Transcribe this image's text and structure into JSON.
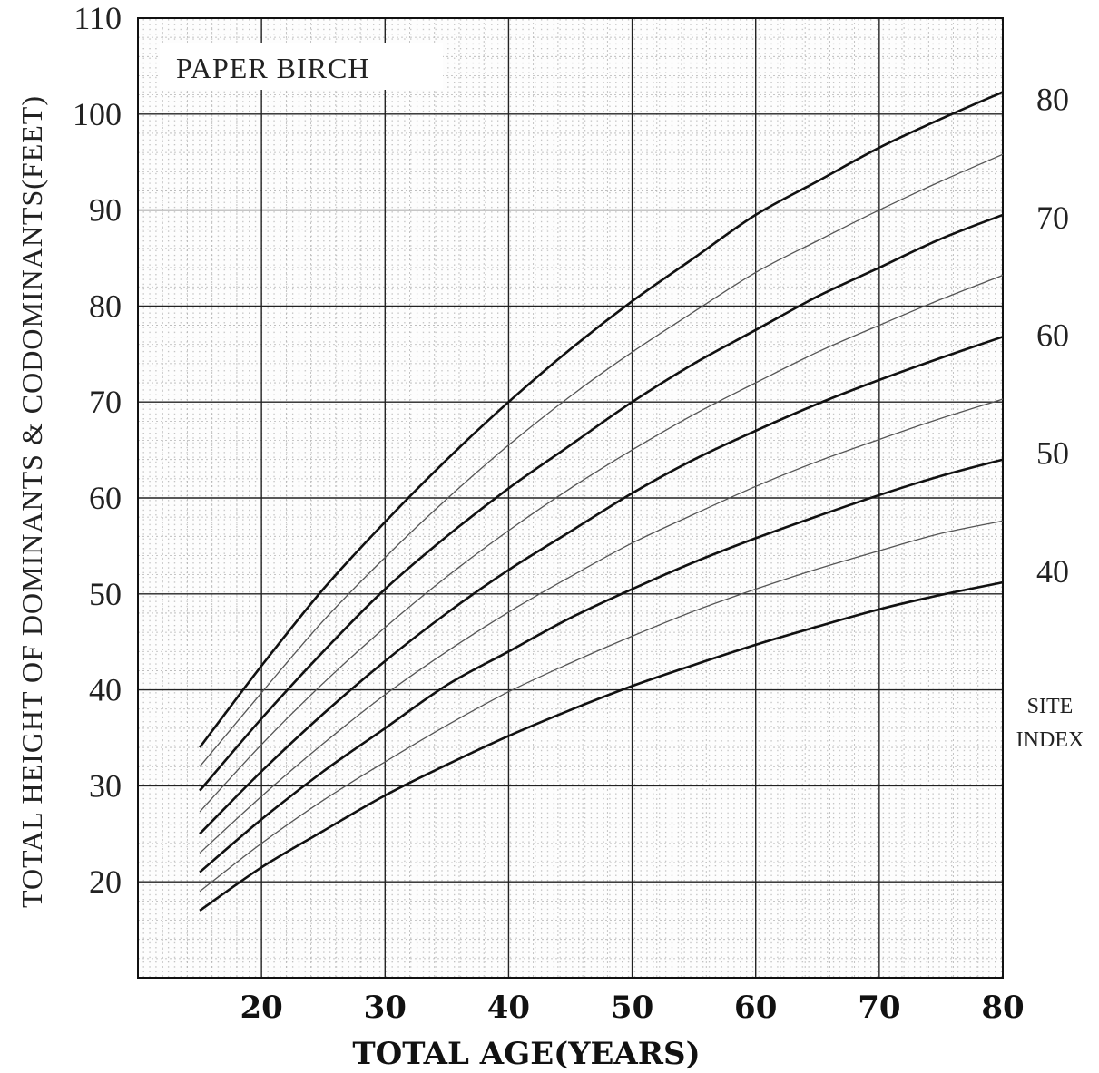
{
  "chart_data": {
    "type": "line",
    "title": "PAPER BIRCH",
    "xlabel": "TOTAL AGE(YEARS)",
    "ylabel": "TOTAL HEIGHT OF DOMINANTS & CODOMINANTS(FEET)",
    "right_axis_title": [
      "SITE",
      "INDEX"
    ],
    "xlim": [
      10,
      80
    ],
    "ylim": [
      10,
      110
    ],
    "x_ticks": [
      20,
      30,
      40,
      50,
      60,
      70,
      80
    ],
    "y_ticks": [
      20,
      30,
      40,
      50,
      60,
      70,
      80,
      90,
      100,
      110
    ],
    "grid": true,
    "x": [
      15,
      20,
      25,
      30,
      35,
      40,
      45,
      50,
      55,
      60,
      65,
      70,
      75,
      80
    ],
    "series": [
      {
        "name": "80",
        "weight": "heavy",
        "values": [
          34,
          42.5,
          50.5,
          57.5,
          64,
          70,
          75.5,
          80.5,
          85,
          89.5,
          93,
          96.5,
          99.5,
          102.3
        ]
      },
      {
        "name": "",
        "weight": "light",
        "values": [
          32,
          39.7,
          47.2,
          53.8,
          59.9,
          65.5,
          70.6,
          75.2,
          79.4,
          83.5,
          86.8,
          90,
          93,
          95.8
        ]
      },
      {
        "name": "70",
        "weight": "heavy",
        "values": [
          29.5,
          37,
          44,
          50.5,
          56,
          61,
          65.5,
          70,
          74,
          77.5,
          81,
          84,
          87,
          89.5
        ]
      },
      {
        "name": "",
        "weight": "light",
        "values": [
          27.3,
          34.3,
          40.7,
          46.5,
          51.8,
          56.6,
          61,
          65,
          68.7,
          72,
          75.2,
          78,
          80.7,
          83.2
        ]
      },
      {
        "name": "60",
        "weight": "heavy",
        "values": [
          25,
          31.5,
          37.5,
          43,
          48,
          52.5,
          56.5,
          60.5,
          64,
          67,
          69.8,
          72.3,
          74.6,
          76.8
        ]
      },
      {
        "name": "",
        "weight": "light",
        "values": [
          23,
          28.9,
          34.4,
          39.5,
          44,
          48.1,
          51.8,
          55.3,
          58.3,
          61.2,
          63.8,
          66.1,
          68.3,
          70.3
        ]
      },
      {
        "name": "50",
        "weight": "heavy",
        "values": [
          21,
          26.5,
          31.5,
          36,
          40.5,
          44,
          47.5,
          50.5,
          53.3,
          55.8,
          58.1,
          60.3,
          62.3,
          64
        ]
      },
      {
        "name": "",
        "weight": "light",
        "values": [
          19,
          24,
          28.5,
          32.5,
          36.3,
          39.8,
          42.8,
          45.6,
          48.2,
          50.5,
          52.6,
          54.5,
          56.3,
          57.6
        ]
      },
      {
        "name": "40",
        "weight": "heavy",
        "values": [
          17,
          21.5,
          25.3,
          29,
          32.2,
          35.2,
          37.9,
          40.4,
          42.6,
          44.7,
          46.6,
          48.4,
          49.9,
          51.2
        ]
      }
    ],
    "site_index_labels": [
      "80",
      "70",
      "60",
      "50",
      "40"
    ]
  }
}
